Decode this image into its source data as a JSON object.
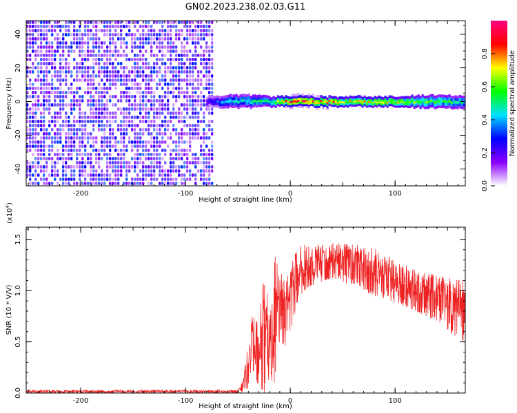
{
  "title": "GN02.2023.238.02.03.G11",
  "chart_data": [
    {
      "type": "heatmap",
      "xlabel": "Height of straight line (km)",
      "ylabel": "Frequency (Hz)",
      "xlim": [
        -252,
        167
      ],
      "ylim": [
        -50,
        48
      ],
      "x_ticks": [
        -200,
        -100,
        0,
        100
      ],
      "x_tick_labels": [
        "-200",
        "-100",
        "0",
        "100"
      ],
      "y_ticks": [
        -40,
        -20,
        0,
        20,
        40
      ],
      "y_tick_labels": [
        "-40",
        "-20",
        "0",
        "20",
        "40"
      ],
      "noise_region": {
        "x": [
          -252,
          -75
        ],
        "y": [
          -50,
          48
        ],
        "amplitude": [
          0.05,
          0.35
        ]
      },
      "signal_band": {
        "x": [
          -80,
          167
        ],
        "frequency_hz": 0,
        "profile": [
          {
            "x": -80,
            "amplitude": 0.25,
            "width_hz": 3
          },
          {
            "x": -60,
            "amplitude": 0.45,
            "width_hz": 4
          },
          {
            "x": -40,
            "amplitude": 0.5,
            "width_hz": 4
          },
          {
            "x": -20,
            "amplitude": 0.55,
            "width_hz": 3
          },
          {
            "x": 0,
            "amplitude": 0.95,
            "width_hz": 3
          },
          {
            "x": 20,
            "amplitude": 0.9,
            "width_hz": 3
          },
          {
            "x": 50,
            "amplitude": 0.75,
            "width_hz": 3
          },
          {
            "x": 100,
            "amplitude": 0.75,
            "width_hz": 3
          },
          {
            "x": 130,
            "amplitude": 0.6,
            "width_hz": 4
          },
          {
            "x": 167,
            "amplitude": 0.5,
            "width_hz": 4
          }
        ]
      },
      "colorbar": {
        "label": "Normalized spectral amplitude",
        "range": [
          0,
          1
        ],
        "ticks": [
          0.0,
          0.2,
          0.4,
          0.6,
          0.8
        ],
        "tick_labels": [
          "0.0",
          "0.2",
          "0.4",
          "0.6",
          "0.8"
        ],
        "colors": [
          "#ffffff",
          "#8a00ff",
          "#0000ff",
          "#00e0ff",
          "#00ff00",
          "#ffff00",
          "#ff0000",
          "#ff0080"
        ]
      }
    },
    {
      "type": "line",
      "xlabel": "Height of straight line (km)",
      "ylabel": "SNR (10 * V/V)",
      "y_multiplier_label": "(x10",
      "y_multiplier_exponent": "4",
      "y_multiplier_close": ")",
      "xlim": [
        -252,
        167
      ],
      "ylim": [
        0,
        1.62
      ],
      "x_ticks": [
        -200,
        -100,
        0,
        100
      ],
      "x_tick_labels": [
        "-200",
        "-100",
        "0",
        "100"
      ],
      "y_ticks": [
        0.0,
        0.5,
        1.0,
        1.5
      ],
      "y_tick_labels": [
        "0.0",
        "0.5",
        "1.0",
        "1.5"
      ],
      "series": [
        {
          "color": "#ee2222",
          "envelope": [
            {
              "x": -252,
              "low": 0.0,
              "high": 0.03
            },
            {
              "x": -50,
              "low": 0.0,
              "high": 0.03
            },
            {
              "x": -45,
              "low": 0.0,
              "high": 0.15
            },
            {
              "x": -40,
              "low": 0.05,
              "high": 0.5
            },
            {
              "x": -35,
              "low": 0.2,
              "high": 0.88
            },
            {
              "x": -30,
              "low": 0.05,
              "high": 0.6
            },
            {
              "x": -25,
              "low": 0.0,
              "high": 1.35
            },
            {
              "x": -20,
              "low": 0.05,
              "high": 0.7
            },
            {
              "x": -15,
              "low": 0.1,
              "high": 1.38
            },
            {
              "x": -10,
              "low": 0.5,
              "high": 1.2
            },
            {
              "x": -5,
              "low": 0.45,
              "high": 1.1
            },
            {
              "x": 0,
              "low": 0.6,
              "high": 1.3
            },
            {
              "x": 10,
              "low": 0.95,
              "high": 1.45
            },
            {
              "x": 20,
              "low": 1.05,
              "high": 1.45
            },
            {
              "x": 40,
              "low": 1.12,
              "high": 1.48
            },
            {
              "x": 60,
              "low": 1.05,
              "high": 1.45
            },
            {
              "x": 80,
              "low": 0.95,
              "high": 1.42
            },
            {
              "x": 100,
              "low": 0.88,
              "high": 1.3
            },
            {
              "x": 120,
              "low": 0.8,
              "high": 1.2
            },
            {
              "x": 140,
              "low": 0.7,
              "high": 1.15
            },
            {
              "x": 155,
              "low": 0.55,
              "high": 1.12
            },
            {
              "x": 167,
              "low": 0.5,
              "high": 1.1
            }
          ]
        }
      ]
    }
  ]
}
